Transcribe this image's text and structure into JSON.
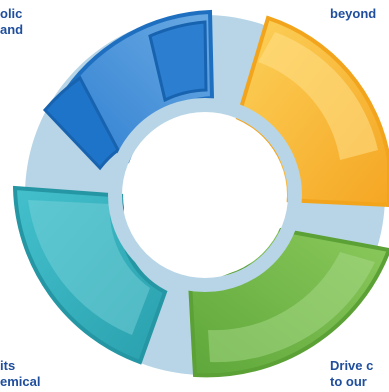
{
  "labels": {
    "top_left": {
      "line1": "olic",
      "line2": "and"
    },
    "top_right": {
      "line1": "beyond"
    },
    "bottom_left": {
      "line1": "its",
      "line2": "emical"
    },
    "bottom_right": {
      "line1": "Drive c",
      "line2": "to our"
    }
  },
  "segments": [
    {
      "name": "blue-segment",
      "color": "#4f93d8"
    },
    {
      "name": "orange-segment",
      "color": "#f7b733"
    },
    {
      "name": "green-segment",
      "color": "#76b94a"
    },
    {
      "name": "teal-segment",
      "color": "#39b3c2"
    }
  ],
  "ring_color": "#b7d5e6"
}
